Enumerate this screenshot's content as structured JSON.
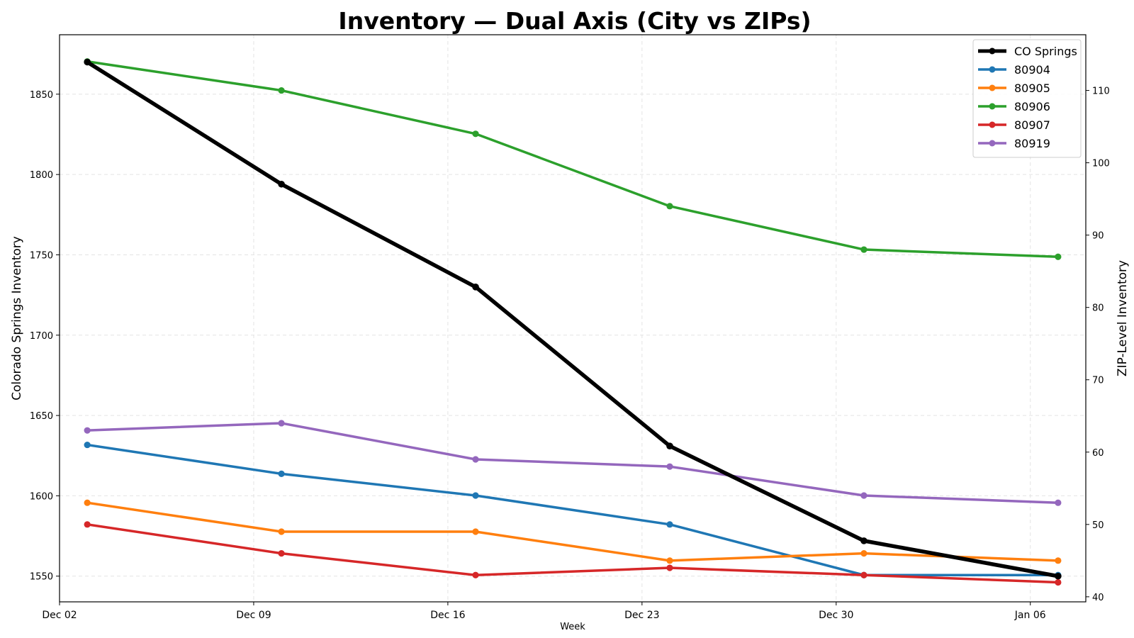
{
  "chart_data": {
    "type": "line",
    "title": "Inventory — Dual Axis (City vs ZIPs)",
    "xlabel": "Week",
    "ylabel_left": "Colorado Springs Inventory",
    "ylabel_right": "ZIP-Level Inventory",
    "x_dates": [
      "2023-12-03",
      "2023-12-10",
      "2023-12-17",
      "2023-12-24",
      "2023-12-31",
      "2024-01-07"
    ],
    "x_ticks": [
      {
        "label": "Dec 02",
        "date": "2023-12-02"
      },
      {
        "label": "Dec 09",
        "date": "2023-12-09"
      },
      {
        "label": "Dec 16",
        "date": "2023-12-16"
      },
      {
        "label": "Dec 23",
        "date": "2023-12-23"
      },
      {
        "label": "Dec 30",
        "date": "2023-12-30"
      },
      {
        "label": "Jan 06",
        "date": "2024-01-06"
      }
    ],
    "xlim": [
      "2023-12-02",
      "2024-01-08"
    ],
    "ylim_left": [
      1534,
      1887
    ],
    "yticks_left": [
      1550,
      1600,
      1650,
      1700,
      1750,
      1800,
      1850
    ],
    "ylim_right": [
      39.3,
      117.7
    ],
    "yticks_right": [
      40,
      50,
      60,
      70,
      80,
      90,
      100,
      110
    ],
    "grid": true,
    "legend_position": "top-right",
    "left_series": [
      {
        "name": "CO Springs",
        "color": "#000000",
        "values": [
          1870,
          1794,
          1730,
          1631,
          1572,
          1550
        ]
      }
    ],
    "right_series": [
      {
        "name": "80904",
        "color": "#1f77b4",
        "values": [
          61,
          57,
          54,
          50,
          43,
          43
        ]
      },
      {
        "name": "80905",
        "color": "#ff7f0e",
        "values": [
          53,
          49,
          49,
          45,
          46,
          45
        ]
      },
      {
        "name": "80906",
        "color": "#2ca02c",
        "values": [
          114,
          110,
          104,
          94,
          88,
          87
        ]
      },
      {
        "name": "80907",
        "color": "#d62728",
        "values": [
          50,
          46,
          43,
          44,
          43,
          42
        ]
      },
      {
        "name": "80919",
        "color": "#9467bd",
        "values": [
          63,
          64,
          59,
          58,
          54,
          53
        ]
      }
    ]
  }
}
